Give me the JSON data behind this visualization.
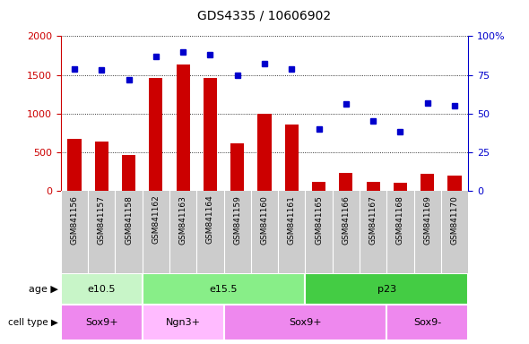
{
  "title": "GDS4335 / 10606902",
  "samples": [
    "GSM841156",
    "GSM841157",
    "GSM841158",
    "GSM841162",
    "GSM841163",
    "GSM841164",
    "GSM841159",
    "GSM841160",
    "GSM841161",
    "GSM841165",
    "GSM841166",
    "GSM841167",
    "GSM841168",
    "GSM841169",
    "GSM841170"
  ],
  "counts": [
    670,
    640,
    460,
    1460,
    1630,
    1460,
    610,
    1000,
    860,
    120,
    230,
    120,
    110,
    220,
    200
  ],
  "percentiles": [
    79,
    78,
    72,
    87,
    90,
    88,
    75,
    82,
    79,
    40,
    56,
    45,
    38,
    57,
    55
  ],
  "bar_color": "#cc0000",
  "dot_color": "#0000cc",
  "ylim_left": [
    0,
    2000
  ],
  "ylim_right": [
    0,
    100
  ],
  "yticks_left": [
    0,
    500,
    1000,
    1500,
    2000
  ],
  "yticks_right": [
    0,
    25,
    50,
    75,
    100
  ],
  "age_groups": [
    {
      "label": "e10.5",
      "start": 0,
      "end": 3,
      "color": "#c8f5c8"
    },
    {
      "label": "e15.5",
      "start": 3,
      "end": 9,
      "color": "#88ee88"
    },
    {
      "label": "p23",
      "start": 9,
      "end": 15,
      "color": "#44cc44"
    }
  ],
  "cell_groups": [
    {
      "label": "Sox9+",
      "start": 0,
      "end": 3,
      "color": "#ee88ee"
    },
    {
      "label": "Ngn3+",
      "start": 3,
      "end": 6,
      "color": "#ffbbff"
    },
    {
      "label": "Sox9+",
      "start": 6,
      "end": 12,
      "color": "#ee88ee"
    },
    {
      "label": "Sox9-",
      "start": 12,
      "end": 15,
      "color": "#ee88ee"
    }
  ],
  "tick_bg_color": "#cccccc",
  "left_axis_color": "#cc0000",
  "right_axis_color": "#0000cc"
}
